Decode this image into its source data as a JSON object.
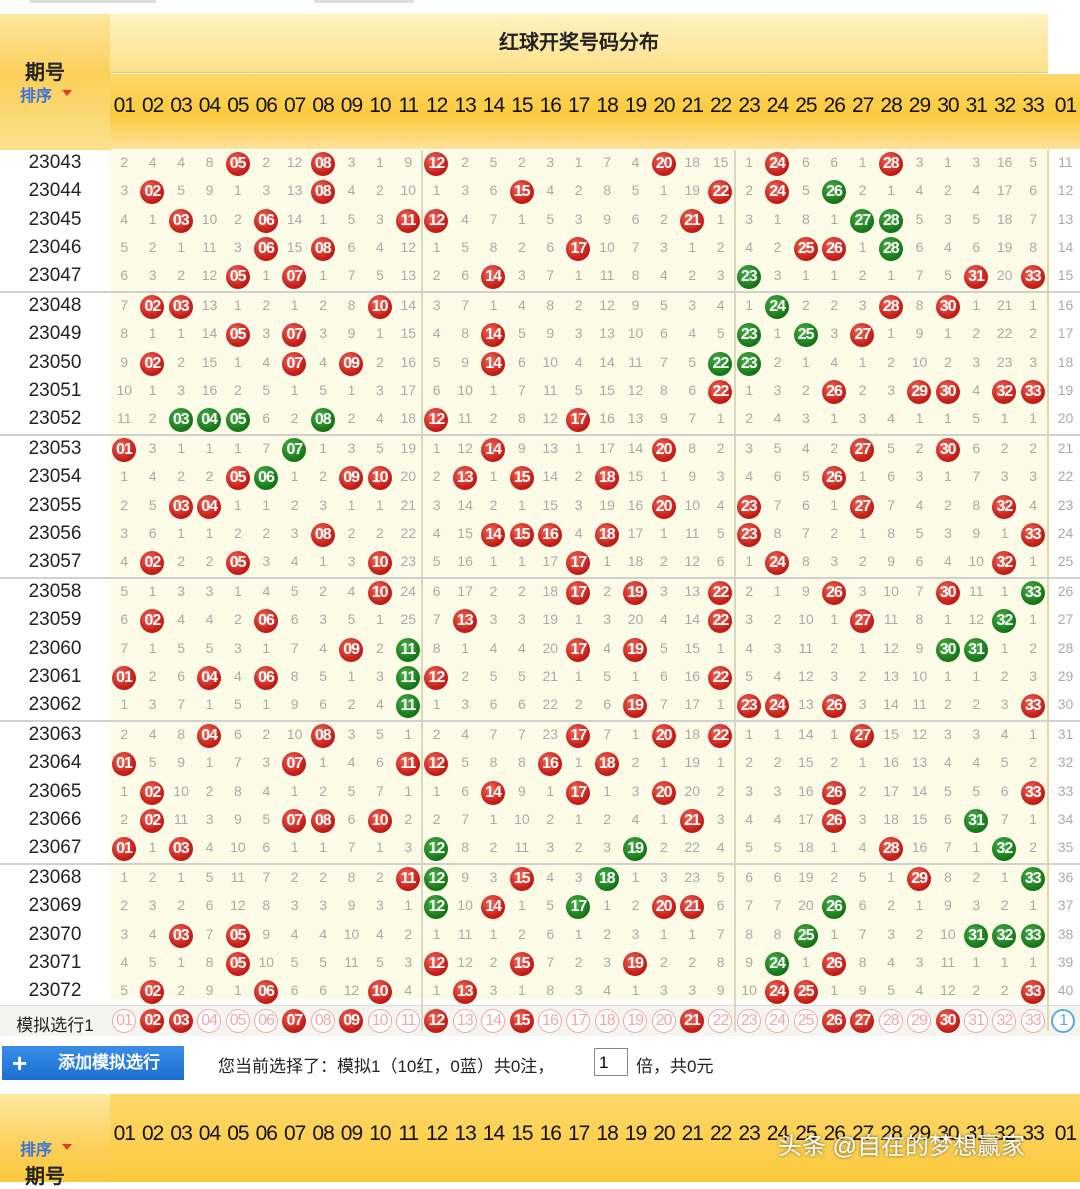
{
  "header": {
    "period_label": "期号",
    "sort_label": "排序",
    "section_title": "红球开奖号码分布"
  },
  "numbers": [
    "01",
    "02",
    "03",
    "04",
    "05",
    "06",
    "07",
    "08",
    "09",
    "10",
    "11",
    "12",
    "13",
    "14",
    "15",
    "16",
    "17",
    "18",
    "19",
    "20",
    "21",
    "22",
    "23",
    "24",
    "25",
    "26",
    "27",
    "28",
    "29",
    "30",
    "31",
    "32",
    "33"
  ],
  "extra_col_label": "01",
  "rows": [
    {
      "period": "23043",
      "cells": [
        "2",
        "4",
        "4",
        "8",
        "05",
        "2",
        "12",
        "08",
        "3",
        "1",
        "9",
        "12",
        "2",
        "5",
        "2",
        "3",
        "1",
        "7",
        "4",
        "20",
        "18",
        "15",
        "1",
        "24",
        "6",
        "6",
        "1",
        "28",
        "3",
        "1",
        "3",
        "16",
        "5"
      ],
      "blue": "11"
    },
    {
      "period": "23044",
      "cells": [
        "3",
        "02",
        "5",
        "9",
        "1",
        "3",
        "13",
        "08",
        "4",
        "2",
        "10",
        "1",
        "3",
        "6",
        "15",
        "4",
        "2",
        "8",
        "5",
        "1",
        "19",
        "22",
        "2",
        "24",
        "5",
        "26",
        "2",
        "1",
        "4",
        "2",
        "4",
        "17",
        "6"
      ],
      "blue": "12"
    },
    {
      "period": "23045",
      "cells": [
        "4",
        "1",
        "03",
        "10",
        "2",
        "06",
        "14",
        "1",
        "5",
        "3",
        "11",
        "12",
        "4",
        "7",
        "1",
        "5",
        "3",
        "9",
        "6",
        "2",
        "21",
        "1",
        "3",
        "1",
        "8",
        "1",
        "27",
        "28",
        "5",
        "3",
        "5",
        "18",
        "7"
      ],
      "blue": "13"
    },
    {
      "period": "23046",
      "cells": [
        "5",
        "2",
        "1",
        "11",
        "3",
        "06",
        "15",
        "08",
        "6",
        "4",
        "12",
        "1",
        "5",
        "8",
        "2",
        "6",
        "17",
        "10",
        "7",
        "3",
        "1",
        "2",
        "4",
        "2",
        "25",
        "26",
        "1",
        "28",
        "6",
        "4",
        "6",
        "19",
        "8"
      ],
      "blue": "14"
    },
    {
      "period": "23047",
      "cells": [
        "6",
        "3",
        "2",
        "12",
        "05",
        "1",
        "07",
        "1",
        "7",
        "5",
        "13",
        "2",
        "6",
        "14",
        "3",
        "7",
        "1",
        "11",
        "8",
        "4",
        "2",
        "3",
        "23",
        "3",
        "1",
        "1",
        "2",
        "1",
        "7",
        "5",
        "31",
        "20",
        "33"
      ],
      "blue": "15"
    },
    {
      "period": "23048",
      "cells": [
        "7",
        "02",
        "03",
        "13",
        "1",
        "2",
        "1",
        "2",
        "8",
        "10",
        "14",
        "3",
        "7",
        "1",
        "4",
        "8",
        "2",
        "12",
        "9",
        "5",
        "3",
        "4",
        "1",
        "24",
        "2",
        "2",
        "3",
        "28",
        "8",
        "30",
        "1",
        "21",
        "1"
      ],
      "blue": "16"
    },
    {
      "period": "23049",
      "cells": [
        "8",
        "1",
        "1",
        "14",
        "05",
        "3",
        "07",
        "3",
        "9",
        "1",
        "15",
        "4",
        "8",
        "14",
        "5",
        "9",
        "3",
        "13",
        "10",
        "6",
        "4",
        "5",
        "23",
        "1",
        "25",
        "3",
        "27",
        "1",
        "9",
        "1",
        "2",
        "22",
        "2"
      ],
      "blue": "17"
    },
    {
      "period": "23050",
      "cells": [
        "9",
        "02",
        "2",
        "15",
        "1",
        "4",
        "07",
        "4",
        "09",
        "2",
        "16",
        "5",
        "9",
        "14",
        "6",
        "10",
        "4",
        "14",
        "11",
        "7",
        "5",
        "22",
        "23",
        "2",
        "1",
        "4",
        "1",
        "2",
        "10",
        "2",
        "3",
        "23",
        "3"
      ],
      "blue": "18"
    },
    {
      "period": "23051",
      "cells": [
        "10",
        "1",
        "3",
        "16",
        "2",
        "5",
        "1",
        "5",
        "1",
        "3",
        "17",
        "6",
        "10",
        "1",
        "7",
        "11",
        "5",
        "15",
        "12",
        "8",
        "6",
        "22",
        "1",
        "3",
        "2",
        "26",
        "2",
        "3",
        "29",
        "30",
        "4",
        "32",
        "33"
      ],
      "blue": "19"
    },
    {
      "period": "23052",
      "cells": [
        "11",
        "2",
        "03",
        "04",
        "05",
        "6",
        "2",
        "08",
        "2",
        "4",
        "18",
        "12",
        "11",
        "2",
        "8",
        "12",
        "17",
        "16",
        "13",
        "9",
        "7",
        "1",
        "2",
        "4",
        "3",
        "1",
        "3",
        "4",
        "1",
        "1",
        "5",
        "1",
        "1"
      ],
      "blue": "20"
    },
    {
      "period": "23053",
      "cells": [
        "01",
        "3",
        "1",
        "1",
        "1",
        "7",
        "07",
        "1",
        "3",
        "5",
        "19",
        "1",
        "12",
        "14",
        "9",
        "13",
        "1",
        "17",
        "14",
        "20",
        "8",
        "2",
        "3",
        "5",
        "4",
        "2",
        "27",
        "5",
        "2",
        "30",
        "6",
        "2",
        "2"
      ],
      "blue": "21"
    },
    {
      "period": "23054",
      "cells": [
        "1",
        "4",
        "2",
        "2",
        "05",
        "06",
        "1",
        "2",
        "09",
        "10",
        "20",
        "2",
        "13",
        "1",
        "15",
        "14",
        "2",
        "18",
        "15",
        "1",
        "9",
        "3",
        "4",
        "6",
        "5",
        "26",
        "1",
        "6",
        "3",
        "1",
        "7",
        "3",
        "3"
      ],
      "blue": "22"
    },
    {
      "period": "23055",
      "cells": [
        "2",
        "5",
        "03",
        "04",
        "1",
        "1",
        "2",
        "3",
        "1",
        "1",
        "21",
        "3",
        "14",
        "2",
        "1",
        "15",
        "3",
        "19",
        "16",
        "20",
        "10",
        "4",
        "23",
        "7",
        "6",
        "1",
        "27",
        "7",
        "4",
        "2",
        "8",
        "32",
        "4"
      ],
      "blue": "23"
    },
    {
      "period": "23056",
      "cells": [
        "3",
        "6",
        "1",
        "1",
        "2",
        "2",
        "3",
        "08",
        "2",
        "2",
        "22",
        "4",
        "15",
        "14",
        "15",
        "16",
        "4",
        "18",
        "17",
        "1",
        "11",
        "5",
        "23",
        "8",
        "7",
        "2",
        "1",
        "8",
        "5",
        "3",
        "9",
        "1",
        "33"
      ],
      "blue": "24"
    },
    {
      "period": "23057",
      "cells": [
        "4",
        "02",
        "2",
        "2",
        "05",
        "3",
        "4",
        "1",
        "3",
        "10",
        "23",
        "5",
        "16",
        "1",
        "1",
        "17",
        "17",
        "1",
        "18",
        "2",
        "12",
        "6",
        "1",
        "24",
        "8",
        "3",
        "2",
        "9",
        "6",
        "4",
        "10",
        "32",
        "1"
      ],
      "blue": "25"
    },
    {
      "period": "23058",
      "cells": [
        "5",
        "1",
        "3",
        "3",
        "1",
        "4",
        "5",
        "2",
        "4",
        "10",
        "24",
        "6",
        "17",
        "2",
        "2",
        "18",
        "17",
        "2",
        "19",
        "3",
        "13",
        "22",
        "2",
        "1",
        "9",
        "26",
        "3",
        "10",
        "7",
        "30",
        "11",
        "1",
        "33"
      ],
      "blue": "26"
    },
    {
      "period": "23059",
      "cells": [
        "6",
        "02",
        "4",
        "4",
        "2",
        "06",
        "6",
        "3",
        "5",
        "1",
        "25",
        "7",
        "13",
        "3",
        "3",
        "19",
        "1",
        "3",
        "20",
        "4",
        "14",
        "22",
        "3",
        "2",
        "10",
        "1",
        "27",
        "11",
        "8",
        "1",
        "12",
        "32",
        "1"
      ],
      "blue": "27"
    },
    {
      "period": "23060",
      "cells": [
        "7",
        "1",
        "5",
        "5",
        "3",
        "1",
        "7",
        "4",
        "09",
        "2",
        "11",
        "8",
        "1",
        "4",
        "4",
        "20",
        "17",
        "4",
        "19",
        "5",
        "15",
        "1",
        "4",
        "3",
        "11",
        "2",
        "1",
        "12",
        "9",
        "30",
        "31",
        "1",
        "2"
      ],
      "blue": "28"
    },
    {
      "period": "23061",
      "cells": [
        "01",
        "2",
        "6",
        "04",
        "4",
        "06",
        "8",
        "5",
        "1",
        "3",
        "11",
        "12",
        "2",
        "5",
        "5",
        "21",
        "1",
        "5",
        "1",
        "6",
        "16",
        "22",
        "5",
        "4",
        "12",
        "3",
        "2",
        "13",
        "10",
        "1",
        "1",
        "2",
        "3"
      ],
      "blue": "29"
    },
    {
      "period": "23062",
      "cells": [
        "1",
        "3",
        "7",
        "1",
        "5",
        "1",
        "9",
        "6",
        "2",
        "4",
        "11",
        "1",
        "3",
        "6",
        "6",
        "22",
        "2",
        "6",
        "19",
        "7",
        "17",
        "1",
        "23",
        "24",
        "13",
        "26",
        "3",
        "14",
        "11",
        "2",
        "2",
        "3",
        "33"
      ],
      "blue": "30"
    },
    {
      "period": "23063",
      "cells": [
        "2",
        "4",
        "8",
        "04",
        "6",
        "2",
        "10",
        "08",
        "3",
        "5",
        "1",
        "2",
        "4",
        "7",
        "7",
        "23",
        "17",
        "7",
        "1",
        "20",
        "18",
        "22",
        "1",
        "1",
        "14",
        "1",
        "27",
        "15",
        "12",
        "3",
        "3",
        "4",
        "1"
      ],
      "blue": "31"
    },
    {
      "period": "23064",
      "cells": [
        "01",
        "5",
        "9",
        "1",
        "7",
        "3",
        "07",
        "1",
        "4",
        "6",
        "11",
        "12",
        "5",
        "8",
        "8",
        "16",
        "1",
        "18",
        "2",
        "1",
        "19",
        "1",
        "2",
        "2",
        "15",
        "2",
        "1",
        "16",
        "13",
        "4",
        "4",
        "5",
        "2"
      ],
      "blue": "32"
    },
    {
      "period": "23065",
      "cells": [
        "1",
        "02",
        "10",
        "2",
        "8",
        "4",
        "1",
        "2",
        "5",
        "7",
        "1",
        "1",
        "6",
        "14",
        "9",
        "1",
        "17",
        "1",
        "3",
        "20",
        "20",
        "2",
        "3",
        "3",
        "16",
        "26",
        "2",
        "17",
        "14",
        "5",
        "5",
        "6",
        "33"
      ],
      "blue": "33"
    },
    {
      "period": "23066",
      "cells": [
        "2",
        "02",
        "11",
        "3",
        "9",
        "5",
        "07",
        "08",
        "6",
        "10",
        "2",
        "2",
        "7",
        "1",
        "10",
        "2",
        "1",
        "2",
        "4",
        "1",
        "21",
        "3",
        "4",
        "4",
        "17",
        "26",
        "3",
        "18",
        "15",
        "6",
        "31",
        "7",
        "1"
      ],
      "blue": "34"
    },
    {
      "period": "23067",
      "cells": [
        "01",
        "1",
        "03",
        "4",
        "10",
        "6",
        "1",
        "1",
        "7",
        "1",
        "3",
        "12",
        "8",
        "2",
        "11",
        "3",
        "2",
        "3",
        "19",
        "2",
        "22",
        "4",
        "5",
        "5",
        "18",
        "1",
        "4",
        "28",
        "16",
        "7",
        "1",
        "32",
        "2"
      ],
      "blue": "35"
    },
    {
      "period": "23068",
      "cells": [
        "1",
        "2",
        "1",
        "5",
        "11",
        "7",
        "2",
        "2",
        "8",
        "2",
        "11",
        "12",
        "9",
        "3",
        "15",
        "4",
        "3",
        "18",
        "1",
        "3",
        "23",
        "5",
        "6",
        "6",
        "19",
        "2",
        "5",
        "1",
        "29",
        "8",
        "2",
        "1",
        "33"
      ],
      "blue": "36"
    },
    {
      "period": "23069",
      "cells": [
        "2",
        "3",
        "2",
        "6",
        "12",
        "8",
        "3",
        "3",
        "9",
        "3",
        "1",
        "12",
        "10",
        "14",
        "1",
        "5",
        "17",
        "1",
        "2",
        "20",
        "21",
        "6",
        "7",
        "7",
        "20",
        "26",
        "6",
        "2",
        "1",
        "9",
        "3",
        "2",
        "1"
      ],
      "blue": "37"
    },
    {
      "period": "23070",
      "cells": [
        "3",
        "4",
        "03",
        "7",
        "05",
        "9",
        "4",
        "4",
        "10",
        "4",
        "2",
        "1",
        "11",
        "1",
        "2",
        "6",
        "1",
        "2",
        "3",
        "1",
        "1",
        "7",
        "8",
        "8",
        "25",
        "1",
        "7",
        "3",
        "2",
        "10",
        "31",
        "32",
        "33"
      ],
      "blue": "38"
    },
    {
      "period": "23071",
      "cells": [
        "4",
        "5",
        "1",
        "8",
        "05",
        "10",
        "5",
        "5",
        "11",
        "5",
        "3",
        "12",
        "12",
        "2",
        "15",
        "7",
        "2",
        "3",
        "19",
        "2",
        "2",
        "8",
        "9",
        "24",
        "1",
        "26",
        "8",
        "4",
        "3",
        "11",
        "1",
        "1",
        "1"
      ],
      "blue": "39"
    },
    {
      "period": "23072",
      "cells": [
        "5",
        "02",
        "2",
        "9",
        "1",
        "06",
        "6",
        "6",
        "12",
        "10",
        "4",
        "1",
        "13",
        "3",
        "1",
        "8",
        "3",
        "4",
        "1",
        "3",
        "3",
        "9",
        "10",
        "24",
        "25",
        "1",
        "9",
        "5",
        "4",
        "12",
        "2",
        "2",
        "33"
      ],
      "blue": "40"
    }
  ],
  "sim_row": {
    "label": "模拟选行1",
    "selected": [
      "02",
      "03",
      "07",
      "09",
      "12",
      "15",
      "21",
      "26",
      "27",
      "30"
    ],
    "blue_label": "1"
  },
  "toolbar": {
    "add_button_label": "添加模拟选行",
    "plus_symbol": "+",
    "info_prefix": "您当前选择了：模拟1（10红，0蓝）共0注，",
    "multiplier_value": "1",
    "info_suffix": "倍，共0元"
  },
  "watermark": "头条 @自在的梦想赢家",
  "colors": {
    "red_ball": "#c8201a",
    "green_ball": "#1a7c1a",
    "header_yellow": "#fbc93c",
    "link_blue": "#3b73d8"
  }
}
